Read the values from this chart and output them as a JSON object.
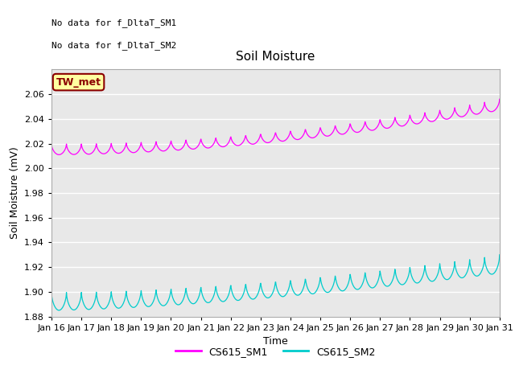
{
  "title": "Soil Moisture",
  "ylabel": "Soil Moisture (mV)",
  "xlabel": "Time",
  "x_tick_labels": [
    "Jan 16",
    "Jan 17",
    "Jan 18",
    "Jan 19",
    "Jan 20",
    "Jan 21",
    "Jan 22",
    "Jan 23",
    "Jan 24",
    "Jan 25",
    "Jan 26",
    "Jan 27",
    "Jan 28",
    "Jan 29",
    "Jan 30",
    "Jan 31"
  ],
  "ylim": [
    1.88,
    2.08
  ],
  "yticks": [
    1.88,
    1.9,
    1.92,
    1.94,
    1.96,
    1.98,
    2.0,
    2.02,
    2.04,
    2.06
  ],
  "color_sm1": "#FF00FF",
  "color_sm2": "#00CCCC",
  "no_data_text1": "No data for f_DltaT_SM1",
  "no_data_text2": "No data for f_DltaT_SM2",
  "tw_met_label": "TW_met",
  "legend_sm1": "CS615_SM1",
  "legend_sm2": "CS615_SM2",
  "bg_color": "#E8E8E8",
  "fig_bg": "#FFFFFF",
  "n_days": 15,
  "points_per_day": 96
}
